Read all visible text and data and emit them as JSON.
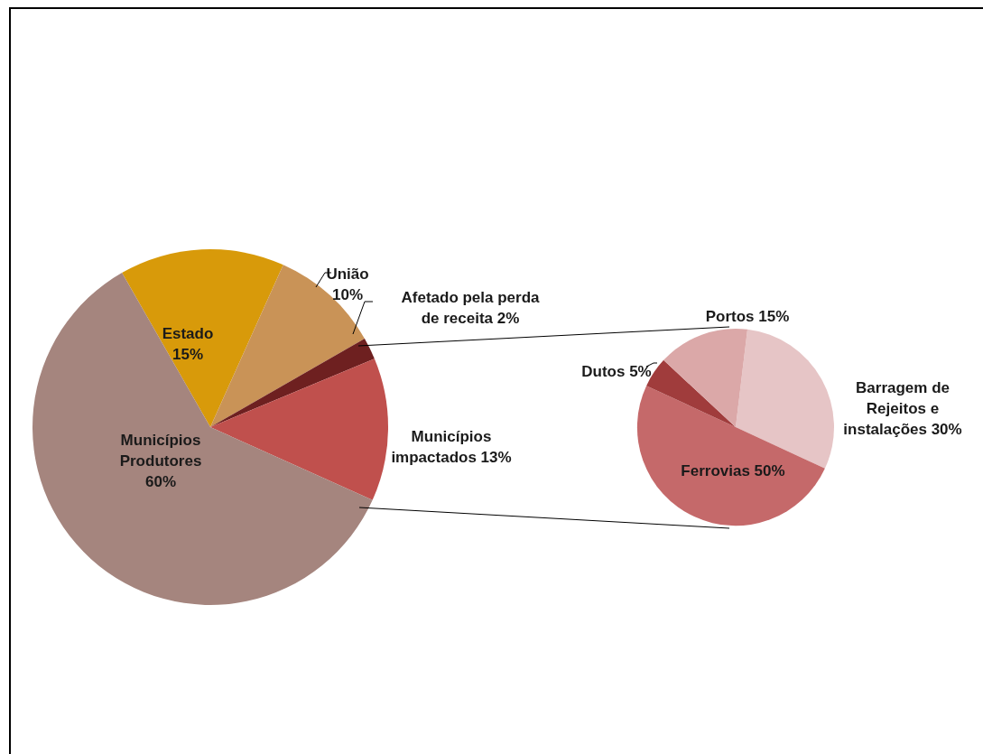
{
  "chart_data": [
    {
      "type": "pie",
      "categories": [
        "Estado",
        "União",
        "Afetado pela perda de receita",
        "Municípios impactados",
        "Municípios Produtores"
      ],
      "values": [
        15,
        10,
        2,
        13,
        60
      ],
      "colors": [
        "#d89a0a",
        "#c99357",
        "#6e2020",
        "#c0504d",
        "#a5857e"
      ],
      "value_labels": [
        "15%",
        "10%",
        "2%",
        "13%",
        "60%"
      ]
    },
    {
      "type": "pie",
      "categories": [
        "Barragem de Rejeitos e instalações",
        "Ferrovias",
        "Dutos",
        "Portos"
      ],
      "values": [
        30,
        50,
        5,
        15
      ],
      "colors": [
        "#e6c5c6",
        "#c5696a",
        "#a03c3c",
        "#dba8a8"
      ],
      "value_labels": [
        "30%",
        "50%",
        "5%",
        "15%"
      ]
    }
  ]
}
